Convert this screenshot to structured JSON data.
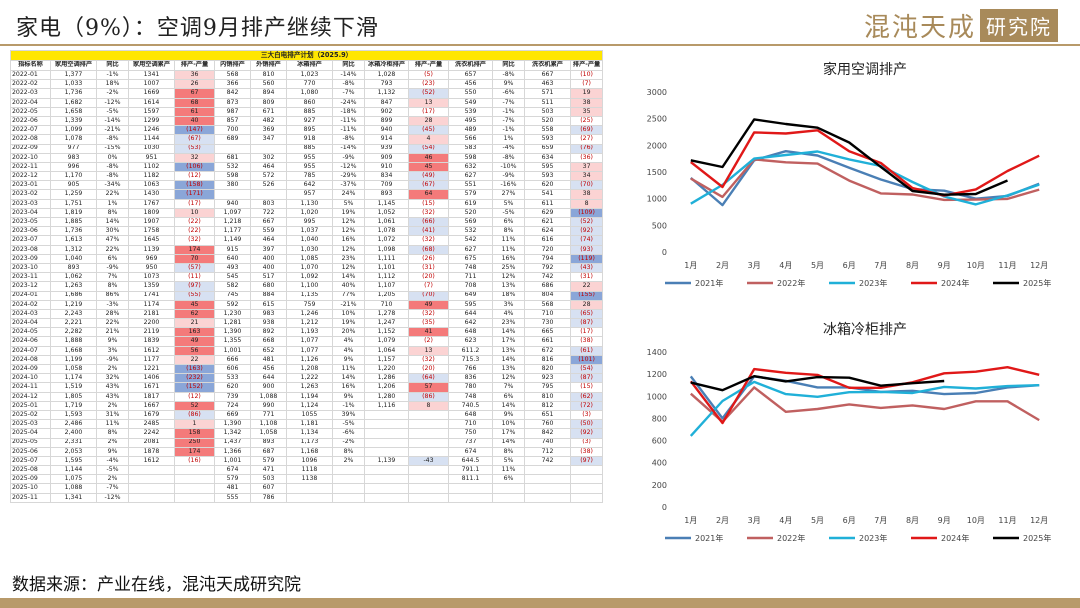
{
  "header": {
    "title": "家电（9%）：空调9月排产继续下滑",
    "logo_text": "混沌天成",
    "logo_box": "研究院"
  },
  "footer": {
    "source": "数据来源：产业在线，混沌天成研究院"
  },
  "table": {
    "title": "三大白电排产计划（2025.9）",
    "headers": [
      "指标名称",
      "家用空调排产",
      "同比",
      "家用空调累产",
      "排产-产量",
      "内销排产",
      "外销排产",
      "冰箱排产",
      "同比",
      "冰箱冷柜排产",
      "排产-产量",
      "洗衣机排产",
      "同比",
      "洗衣机累产",
      "排产-产量"
    ],
    "colors": {
      "hi_red": "#f47a7a",
      "lo_red": "#fbd3d3",
      "hi_blue": "#8aa6d8",
      "lo_blue": "#d7e1f2",
      "neg_text": "#c00000"
    },
    "rows": [
      [
        "2022-01",
        "1,377",
        "-1%",
        "1341",
        "36",
        "568",
        "810",
        "1,023",
        "-14%",
        "1,028",
        "(5)",
        "657",
        "-8%",
        "667",
        "(10)"
      ],
      [
        "2022-02",
        "1,033",
        "18%",
        "1007",
        "26",
        "366",
        "560",
        "770",
        "-8%",
        "793",
        "(23)",
        "456",
        "9%",
        "463",
        "(7)"
      ],
      [
        "2022-03",
        "1,736",
        "-2%",
        "1669",
        "67",
        "842",
        "894",
        "1,080",
        "-7%",
        "1,132",
        "(52)",
        "550",
        "-6%",
        "571",
        "19"
      ],
      [
        "2022-04",
        "1,682",
        "-12%",
        "1614",
        "68",
        "873",
        "809",
        "860",
        "-24%",
        "847",
        "13",
        "549",
        "-7%",
        "511",
        "38"
      ],
      [
        "2022-05",
        "1,658",
        "-5%",
        "1597",
        "61",
        "987",
        "671",
        "885",
        "-18%",
        "902",
        "(17)",
        "539",
        "-1%",
        "503",
        "35"
      ],
      [
        "2022-06",
        "1,339",
        "-14%",
        "1299",
        "40",
        "857",
        "482",
        "927",
        "-11%",
        "899",
        "28",
        "495",
        "-7%",
        "520",
        "(25)"
      ],
      [
        "2022-07",
        "1,099",
        "-21%",
        "1246",
        "(147)",
        "700",
        "369",
        "895",
        "-11%",
        "940",
        "(45)",
        "489",
        "-1%",
        "558",
        "(69)"
      ],
      [
        "2022-08",
        "1,078",
        "-8%",
        "1144",
        "(67)",
        "689",
        "347",
        "918",
        "-8%",
        "914",
        "4",
        "566",
        "1%",
        "593",
        "(27)"
      ],
      [
        "2022-09",
        "977",
        "-15%",
        "1030",
        "(53)",
        "",
        "",
        "885",
        "-14%",
        "939",
        "(54)",
        "583",
        "-4%",
        "659",
        "(76)"
      ],
      [
        "2022-10",
        "983",
        "0%",
        "951",
        "32",
        "681",
        "302",
        "955",
        "-9%",
        "909",
        "46",
        "598",
        "-8%",
        "634",
        "(36)"
      ],
      [
        "2022-11",
        "996",
        "-8%",
        "1102",
        "(106)",
        "532",
        "464",
        "955",
        "-12%",
        "910",
        "45",
        "632",
        "-10%",
        "595",
        "37"
      ],
      [
        "2022-12",
        "1,170",
        "-8%",
        "1182",
        "(12)",
        "598",
        "572",
        "785",
        "-29%",
        "834",
        "(49)",
        "627",
        "-9%",
        "593",
        "34"
      ],
      [
        "2023-01",
        "905",
        "-34%",
        "1063",
        "(158)",
        "380",
        "526",
        "642",
        "-37%",
        "709",
        "(67)",
        "551",
        "-16%",
        "620",
        "(70)"
      ],
      [
        "2023-02",
        "1,259",
        "22%",
        "1430",
        "(171)",
        "",
        "",
        "957",
        "24%",
        "893",
        "64",
        "579",
        "27%",
        "541",
        "38"
      ],
      [
        "2023-03",
        "1,751",
        "1%",
        "1767",
        "(17)",
        "940",
        "803",
        "1,130",
        "5%",
        "1,145",
        "(15)",
        "619",
        "5%",
        "611",
        "8"
      ],
      [
        "2023-04",
        "1,819",
        "8%",
        "1809",
        "10",
        "1,097",
        "722",
        "1,020",
        "19%",
        "1,052",
        "(32)",
        "520",
        "-5%",
        "629",
        "(109)"
      ],
      [
        "2023-05",
        "1,885",
        "14%",
        "1907",
        "(22)",
        "1,218",
        "667",
        "995",
        "12%",
        "1,061",
        "(66)",
        "569",
        "6%",
        "621",
        "(52)"
      ],
      [
        "2023-06",
        "1,736",
        "30%",
        "1758",
        "(22)",
        "1,177",
        "559",
        "1,037",
        "12%",
        "1,078",
        "(41)",
        "532",
        "8%",
        "624",
        "(92)"
      ],
      [
        "2023-07",
        "1,613",
        "47%",
        "1645",
        "(32)",
        "1,149",
        "464",
        "1,040",
        "16%",
        "1,072",
        "(32)",
        "542",
        "11%",
        "616",
        "(74)"
      ],
      [
        "2023-08",
        "1,312",
        "22%",
        "1139",
        "174",
        "915",
        "397",
        "1,030",
        "12%",
        "1,098",
        "(68)",
        "627",
        "11%",
        "720",
        "(93)"
      ],
      [
        "2023-09",
        "1,040",
        "6%",
        "969",
        "70",
        "640",
        "400",
        "1,085",
        "23%",
        "1,111",
        "(26)",
        "675",
        "16%",
        "794",
        "(119)"
      ],
      [
        "2023-10",
        "893",
        "-9%",
        "950",
        "(57)",
        "493",
        "400",
        "1,070",
        "12%",
        "1,101",
        "(31)",
        "748",
        "25%",
        "792",
        "(43)"
      ],
      [
        "2023-11",
        "1,062",
        "7%",
        "1073",
        "(11)",
        "545",
        "517",
        "1,092",
        "14%",
        "1,112",
        "(20)",
        "711",
        "12%",
        "742",
        "(31)"
      ],
      [
        "2023-12",
        "1,263",
        "8%",
        "1359",
        "(97)",
        "582",
        "680",
        "1,100",
        "40%",
        "1,107",
        "(7)",
        "708",
        "13%",
        "686",
        "22"
      ],
      [
        "2024-01",
        "1,686",
        "86%",
        "1741",
        "(55)",
        "745",
        "884",
        "1,135",
        "77%",
        "1,205",
        "(70)",
        "649",
        "18%",
        "804",
        "(155)"
      ],
      [
        "2024-02",
        "1,219",
        "-3%",
        "1174",
        "45",
        "592",
        "615",
        "759",
        "-21%",
        "710",
        "49",
        "595",
        "3%",
        "568",
        "28"
      ],
      [
        "2024-03",
        "2,243",
        "28%",
        "2181",
        "62",
        "1,230",
        "983",
        "1,246",
        "10%",
        "1,278",
        "(32)",
        "644",
        "4%",
        "710",
        "(65)"
      ],
      [
        "2024-04",
        "2,221",
        "22%",
        "2200",
        "21",
        "1,281",
        "938",
        "1,212",
        "19%",
        "1,247",
        "(35)",
        "642",
        "23%",
        "730",
        "(87)"
      ],
      [
        "2024-05",
        "2,282",
        "21%",
        "2119",
        "163",
        "1,390",
        "892",
        "1,193",
        "20%",
        "1,152",
        "41",
        "648",
        "14%",
        "665",
        "(17)"
      ],
      [
        "2024-06",
        "1,888",
        "9%",
        "1839",
        "49",
        "1,355",
        "668",
        "1,077",
        "4%",
        "1,079",
        "(2)",
        "623",
        "17%",
        "661",
        "(38)"
      ],
      [
        "2024-07",
        "1,668",
        "3%",
        "1612",
        "56",
        "1,001",
        "652",
        "1,077",
        "4%",
        "1,064",
        "13",
        "611.2",
        "13%",
        "672",
        "(61)"
      ],
      [
        "2024-08",
        "1,199",
        "-9%",
        "1177",
        "22",
        "666",
        "481",
        "1,126",
        "9%",
        "1,157",
        "(32)",
        "715.3",
        "14%",
        "816",
        "(101)"
      ],
      [
        "2024-09",
        "1,058",
        "2%",
        "1221",
        "(163)",
        "606",
        "456",
        "1,208",
        "11%",
        "1,220",
        "(20)",
        "766",
        "13%",
        "820",
        "(54)"
      ],
      [
        "2024-10",
        "1,174",
        "32%",
        "1406",
        "(232)",
        "533",
        "644",
        "1,222",
        "14%",
        "1,286",
        "(64)",
        "836",
        "12%",
        "923",
        "(87)"
      ],
      [
        "2024-11",
        "1,519",
        "43%",
        "1671",
        "(152)",
        "620",
        "900",
        "1,263",
        "16%",
        "1,206",
        "57",
        "780",
        "7%",
        "795",
        "(15)"
      ],
      [
        "2024-12",
        "1,805",
        "43%",
        "1817",
        "(12)",
        "739",
        "1,088",
        "1,194",
        "9%",
        "1,280",
        "(86)",
        "748",
        "6%",
        "810",
        "(62)"
      ],
      [
        "2025-01",
        "1,719",
        "2%",
        "1667",
        "52",
        "724",
        "990",
        "1,124",
        "-1%",
        "1,116",
        "8",
        "740.5",
        "14%",
        "812",
        "(72)"
      ],
      [
        "2025-02",
        "1,593",
        "31%",
        "1679",
        "(86)",
        "669",
        "771",
        "1055",
        "39%",
        "",
        "",
        "648",
        "9%",
        "651",
        "(3)"
      ],
      [
        "2025-03",
        "2,486",
        "11%",
        "2485",
        "1",
        "1,390",
        "1,108",
        "1,181",
        "-5%",
        "",
        "",
        "710",
        "10%",
        "760",
        "(50)"
      ],
      [
        "2025-04",
        "2,400",
        "8%",
        "2242",
        "158",
        "1,342",
        "1,058",
        "1,134",
        "-6%",
        "",
        "",
        "750",
        "17%",
        "842",
        "(92)"
      ],
      [
        "2025-05",
        "2,331",
        "2%",
        "2081",
        "250",
        "1,437",
        "893",
        "1,173",
        "-2%",
        "",
        "",
        "737",
        "14%",
        "740",
        "(3)"
      ],
      [
        "2025-06",
        "2,053",
        "9%",
        "1878",
        "174",
        "1,366",
        "687",
        "1,168",
        "8%",
        "",
        "",
        "674",
        "8%",
        "712",
        "(38)"
      ],
      [
        "2025-07",
        "1,595",
        "-4%",
        "1612",
        "(16)",
        "1,001",
        "579",
        "1096",
        "2%",
        "1,139",
        "-43",
        "644.5",
        "5%",
        "742",
        "(97)"
      ],
      [
        "2025-08",
        "1,144",
        "-5%",
        "",
        "",
        "674",
        "471",
        "1118",
        "",
        "",
        "",
        "791.1",
        "11%",
        "",
        ""
      ],
      [
        "2025-09",
        "1,075",
        "2%",
        "",
        "",
        "579",
        "503",
        "1138",
        "",
        "",
        "",
        "811.1",
        "6%",
        "",
        ""
      ],
      [
        "2025-10",
        "1,088",
        "-7%",
        "",
        "",
        "481",
        "607",
        "",
        "",
        "",
        "",
        "",
        "",
        "",
        ""
      ],
      [
        "2025-11",
        "1,341",
        "-12%",
        "",
        "",
        "555",
        "786",
        "",
        "",
        "",
        "",
        "",
        "",
        "",
        ""
      ]
    ]
  },
  "chart_data": [
    {
      "type": "line",
      "title": "家用空调排产",
      "categories": [
        "1月",
        "2月",
        "3月",
        "4月",
        "5月",
        "6月",
        "7月",
        "8月",
        "9月",
        "10月",
        "11月",
        "12月"
      ],
      "ylim": [
        0,
        3000
      ],
      "yticks": [
        0,
        500,
        1000,
        1500,
        2000,
        2500,
        3000
      ],
      "legend_position": "bottom",
      "series": [
        {
          "name": "2021年",
          "color": "#4a7fb5",
          "values": [
            1390,
            880,
            1720,
            1890,
            1810,
            1580,
            1360,
            1180,
            1150,
            1000,
            1050,
            1280
          ]
        },
        {
          "name": "2022年",
          "color": "#c06060",
          "values": [
            1377,
            1033,
            1736,
            1682,
            1658,
            1339,
            1099,
            1078,
            977,
            983,
            996,
            1170
          ]
        },
        {
          "name": "2023年",
          "color": "#20b0d8",
          "values": [
            905,
            1259,
            1751,
            1819,
            1885,
            1736,
            1613,
            1312,
            1040,
            893,
            1062,
            1263
          ]
        },
        {
          "name": "2024年",
          "color": "#e01818",
          "values": [
            1686,
            1219,
            2243,
            2221,
            2282,
            1888,
            1668,
            1199,
            1058,
            1174,
            1519,
            1805
          ]
        },
        {
          "name": "2025年",
          "color": "#000000",
          "values": [
            1719,
            1593,
            2486,
            2400,
            2331,
            2053,
            1595,
            1144,
            1075,
            1088,
            1341,
            null
          ]
        }
      ]
    },
    {
      "type": "line",
      "title": "冰箱冷柜排产",
      "categories": [
        "1月",
        "2月",
        "3月",
        "4月",
        "5月",
        "6月",
        "7月",
        "8月",
        "9月",
        "10月",
        "11月",
        "12月"
      ],
      "ylim": [
        0,
        1400
      ],
      "yticks": [
        0,
        200,
        400,
        600,
        800,
        1000,
        1200,
        1400
      ],
      "legend_position": "bottom",
      "series": [
        {
          "name": "2021年",
          "color": "#4a7fb5",
          "values": [
            1180,
            800,
            1180,
            1140,
            1080,
            1080,
            1040,
            1050,
            1020,
            1030,
            1080,
            1100
          ]
        },
        {
          "name": "2022年",
          "color": "#c06060",
          "values": [
            1023,
            770,
            1080,
            860,
            885,
            927,
            895,
            918,
            885,
            955,
            955,
            785
          ]
        },
        {
          "name": "2023年",
          "color": "#20b0d8",
          "values": [
            642,
            957,
            1130,
            1020,
            995,
            1037,
            1040,
            1030,
            1085,
            1070,
            1092,
            1100
          ]
        },
        {
          "name": "2024年",
          "color": "#e01818",
          "values": [
            1135,
            759,
            1246,
            1212,
            1193,
            1077,
            1077,
            1126,
            1208,
            1222,
            1263,
            1194
          ]
        },
        {
          "name": "2025年",
          "color": "#000000",
          "values": [
            1124,
            1055,
            1181,
            1134,
            1173,
            1168,
            1096,
            1118,
            1138,
            null,
            null,
            null
          ]
        }
      ]
    }
  ]
}
